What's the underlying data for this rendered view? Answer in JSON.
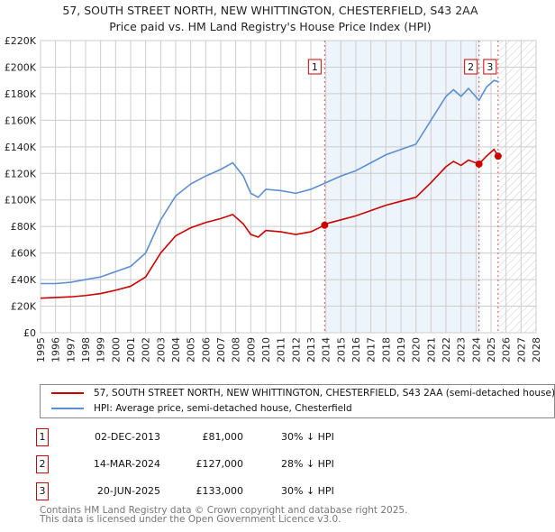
{
  "chart_data": {
    "type": "line",
    "title": "57, SOUTH STREET NORTH, NEW WHITTINGTON, CHESTERFIELD, S43 2AA",
    "subtitle": "Price paid vs. HM Land Registry's House Price Index (HPI)",
    "xlim": [
      1995,
      2028
    ],
    "ylim": [
      0,
      220000
    ],
    "x_ticks": [
      "1995",
      "1996",
      "1997",
      "1998",
      "1999",
      "2000",
      "2001",
      "2002",
      "2003",
      "2004",
      "2005",
      "2006",
      "2007",
      "2008",
      "2009",
      "2010",
      "2011",
      "2012",
      "2013",
      "2014",
      "2015",
      "2016",
      "2017",
      "2018",
      "2019",
      "2020",
      "2021",
      "2022",
      "2023",
      "2024",
      "2025",
      "2026",
      "2027",
      "2028"
    ],
    "y_ticks": [
      {
        "v": 0,
        "label": "£0"
      },
      {
        "v": 20000,
        "label": "£20K"
      },
      {
        "v": 40000,
        "label": "£40K"
      },
      {
        "v": 60000,
        "label": "£60K"
      },
      {
        "v": 80000,
        "label": "£80K"
      },
      {
        "v": 100000,
        "label": "£100K"
      },
      {
        "v": 120000,
        "label": "£120K"
      },
      {
        "v": 140000,
        "label": "£140K"
      },
      {
        "v": 160000,
        "label": "£160K"
      },
      {
        "v": 180000,
        "label": "£180K"
      },
      {
        "v": 200000,
        "label": "£200K"
      },
      {
        "v": 220000,
        "label": "£220K"
      }
    ],
    "grid": true,
    "series": [
      {
        "name": "57, SOUTH STREET NORTH, NEW WHITTINGTON, CHESTERFIELD, S43 2AA (semi-detached house)",
        "color": "#cc0000",
        "x": [
          1995,
          1996,
          1997,
          1998,
          1999,
          2000,
          2001,
          2002,
          2003,
          2004,
          2005,
          2006,
          2007,
          2007.8,
          2008.5,
          2009,
          2009.5,
          2010,
          2011,
          2012,
          2013,
          2013.92,
          2014,
          2015,
          2016,
          2017,
          2018,
          2019,
          2020,
          2021,
          2022,
          2022.5,
          2023,
          2023.5,
          2024.2,
          2024.7,
          2025.2,
          2025.47
        ],
        "y": [
          26000,
          26500,
          27000,
          28000,
          29500,
          32000,
          35000,
          42000,
          60000,
          73000,
          79000,
          83000,
          86000,
          89000,
          82000,
          74000,
          72000,
          77000,
          76000,
          74000,
          76000,
          81000,
          82000,
          85000,
          88000,
          92000,
          96000,
          99000,
          102000,
          113000,
          125000,
          129000,
          126000,
          130000,
          127000,
          133000,
          138000,
          133000
        ]
      },
      {
        "name": "HPI: Average price, semi-detached house, Chesterfield",
        "color": "#5b8fd0",
        "x": [
          1995,
          1996,
          1997,
          1998,
          1999,
          2000,
          2001,
          2002,
          2003,
          2004,
          2005,
          2006,
          2007,
          2007.8,
          2008.5,
          2009,
          2009.5,
          2010,
          2011,
          2012,
          2013,
          2014,
          2015,
          2016,
          2017,
          2018,
          2019,
          2020,
          2021,
          2022,
          2022.5,
          2023,
          2023.5,
          2024.2,
          2024.7,
          2025.2,
          2025.5
        ],
        "y": [
          37000,
          37000,
          38000,
          40000,
          42000,
          46000,
          50000,
          60000,
          85000,
          103000,
          112000,
          118000,
          123000,
          128000,
          118000,
          105000,
          102000,
          108000,
          107000,
          105000,
          108000,
          113000,
          118000,
          122000,
          128000,
          134000,
          138000,
          142000,
          160000,
          178000,
          183000,
          178000,
          184000,
          175000,
          185000,
          190000,
          189000
        ]
      }
    ],
    "transactions": [
      {
        "id": "1",
        "date": "02-DEC-2013",
        "x": 2013.92,
        "price": "£81,000",
        "value": 81000,
        "hpi": "30% ↓ HPI"
      },
      {
        "id": "2",
        "date": "14-MAR-2024",
        "x": 2024.2,
        "price": "£127,000",
        "value": 127000,
        "hpi": "28% ↓ HPI"
      },
      {
        "id": "3",
        "date": "20-JUN-2025",
        "x": 2025.47,
        "price": "£133,000",
        "value": 133000,
        "hpi": "30% ↓ HPI"
      }
    ]
  },
  "footer": [
    "Contains HM Land Registry data © Crown copyright and database right 2025.",
    "This data is licensed under the Open Government Licence v3.0."
  ]
}
